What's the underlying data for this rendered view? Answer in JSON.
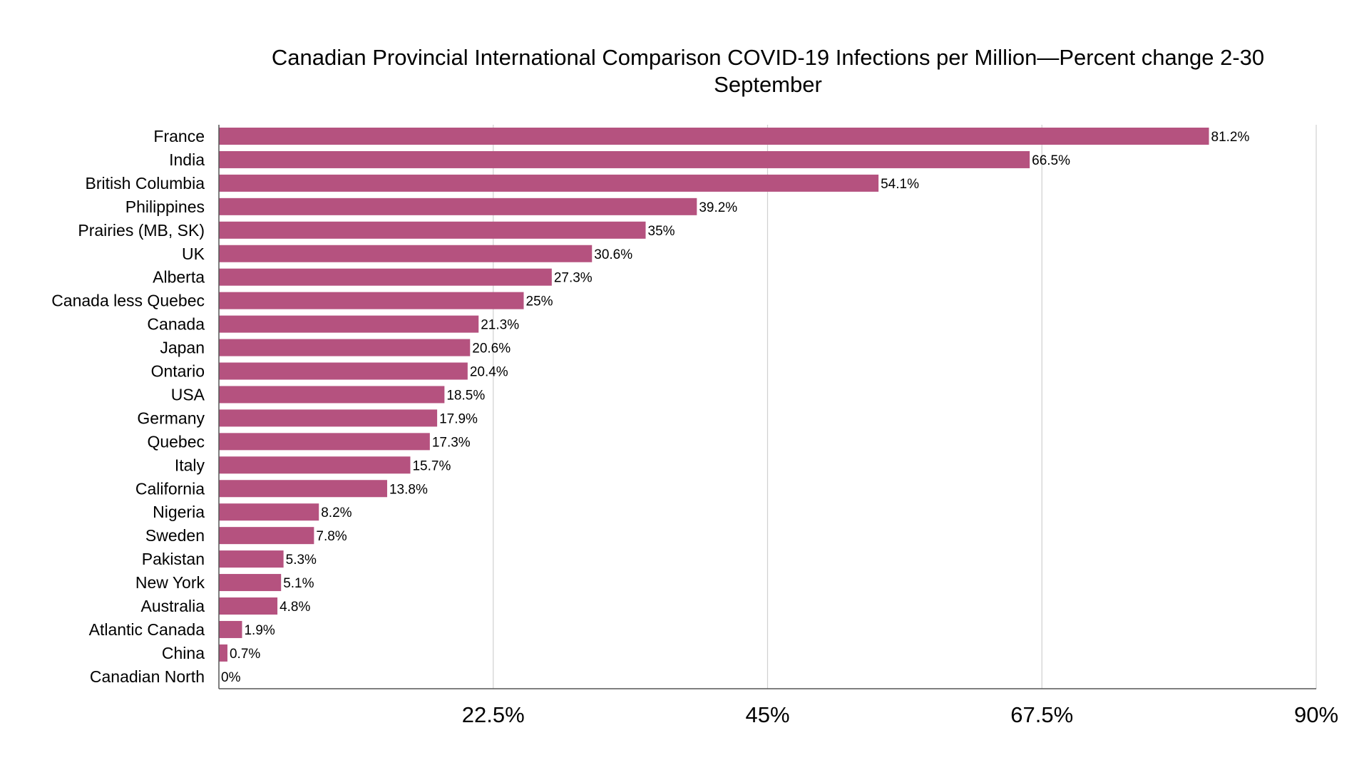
{
  "chart_data": {
    "type": "bar",
    "orientation": "horizontal",
    "title": "Canadian Provincial International Comparison COVID-19 Infections per Million—Percent change 2-30 September",
    "title_lines": [
      "Canadian Provincial International Comparison COVID-19 Infections per Million—Percent change 2-30",
      "September"
    ],
    "categories": [
      "France",
      "India",
      "British Columbia",
      "Philippines",
      "Prairies (MB, SK)",
      "UK",
      "Alberta",
      "Canada less Quebec",
      "Canada",
      "Japan",
      "Ontario",
      "USA",
      "Germany",
      "Quebec",
      "Italy",
      "California",
      "Nigeria",
      "Sweden",
      "Pakistan",
      "New York",
      "Australia",
      "Atlantic Canada",
      "China",
      "Canadian North"
    ],
    "values": [
      81.2,
      66.5,
      54.1,
      39.2,
      35,
      30.6,
      27.3,
      25,
      21.3,
      20.6,
      20.4,
      18.5,
      17.9,
      17.3,
      15.7,
      13.8,
      8.2,
      7.8,
      5.3,
      5.1,
      4.8,
      1.9,
      0.7,
      0
    ],
    "value_labels": [
      "81.2%",
      "66.5%",
      "54.1%",
      "39.2%",
      "35%",
      "30.6%",
      "27.3%",
      "25%",
      "21.3%",
      "20.6%",
      "20.4%",
      "18.5%",
      "17.9%",
      "17.3%",
      "15.7%",
      "13.8%",
      "8.2%",
      "7.8%",
      "5.3%",
      "5.1%",
      "4.8%",
      "1.9%",
      "0.7%",
      "0%"
    ],
    "xlim": [
      0,
      90
    ],
    "xticks": [
      22.5,
      45,
      67.5,
      90
    ],
    "xtick_labels": [
      "22.5%",
      "45%",
      "67.5%",
      "90%"
    ],
    "xlabel": "",
    "ylabel": "",
    "grid": "vertical",
    "legend": "none",
    "bar_color": "#b5527f"
  }
}
